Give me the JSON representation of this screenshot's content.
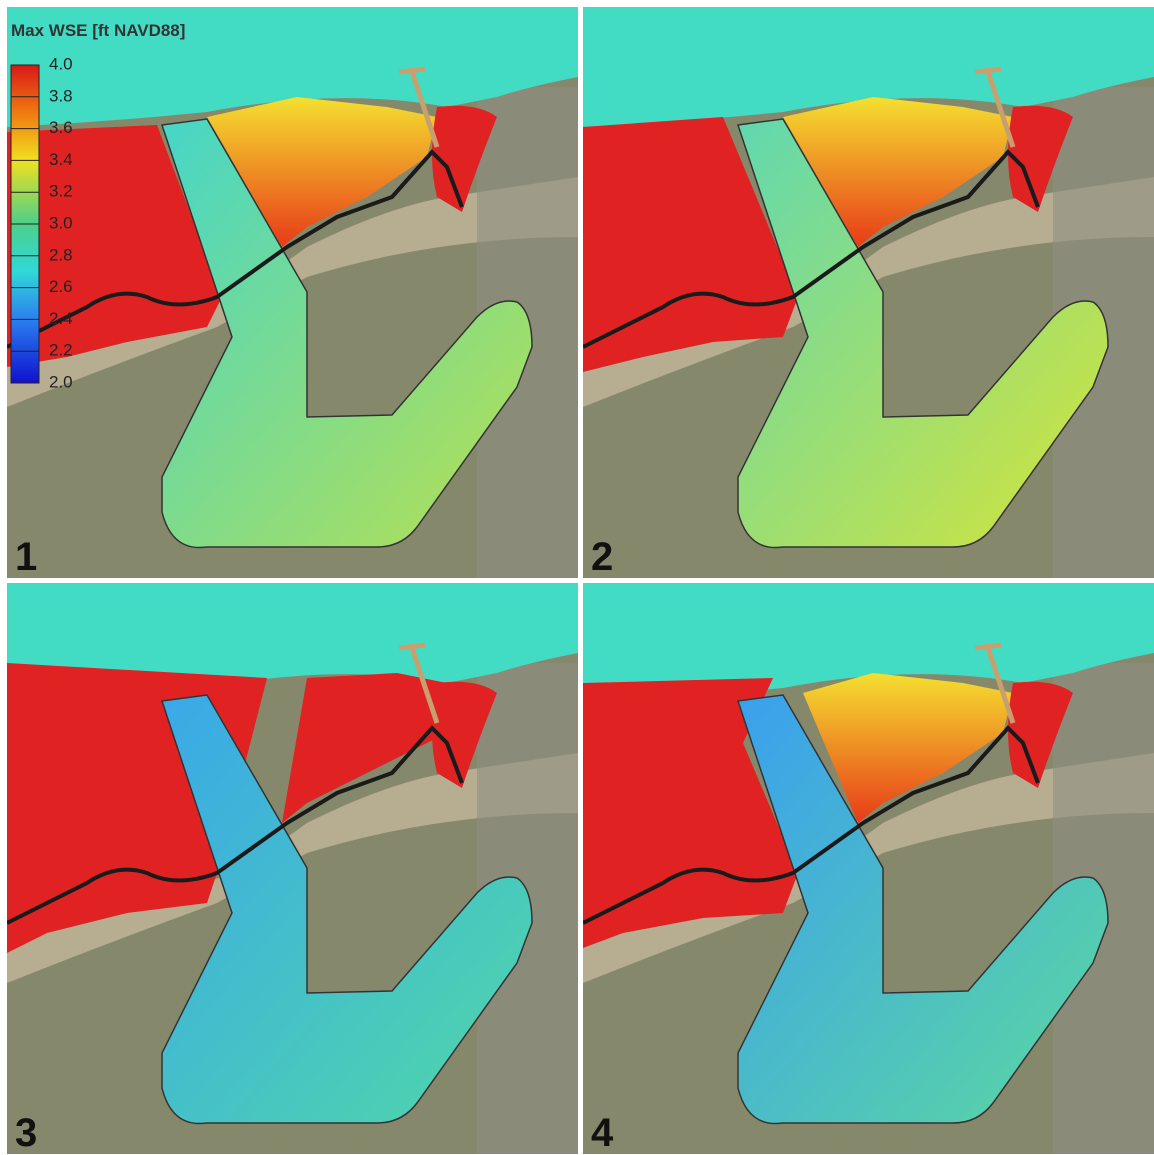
{
  "legend": {
    "title": "Max WSE [ft NAVD88]",
    "range": [
      2,
      4
    ],
    "ticks": [
      {
        "value": 4,
        "label": "4.0"
      },
      3.8,
      3.6,
      3.4,
      3.2,
      {
        "value": 3,
        "label": "3.0"
      },
      2.8,
      2.6,
      2.4,
      2.2,
      {
        "value": 2,
        "label": "2.0"
      }
    ]
  },
  "panels": [
    {
      "label": "1"
    },
    {
      "label": "2"
    },
    {
      "label": "3"
    },
    {
      "label": "4"
    }
  ]
}
